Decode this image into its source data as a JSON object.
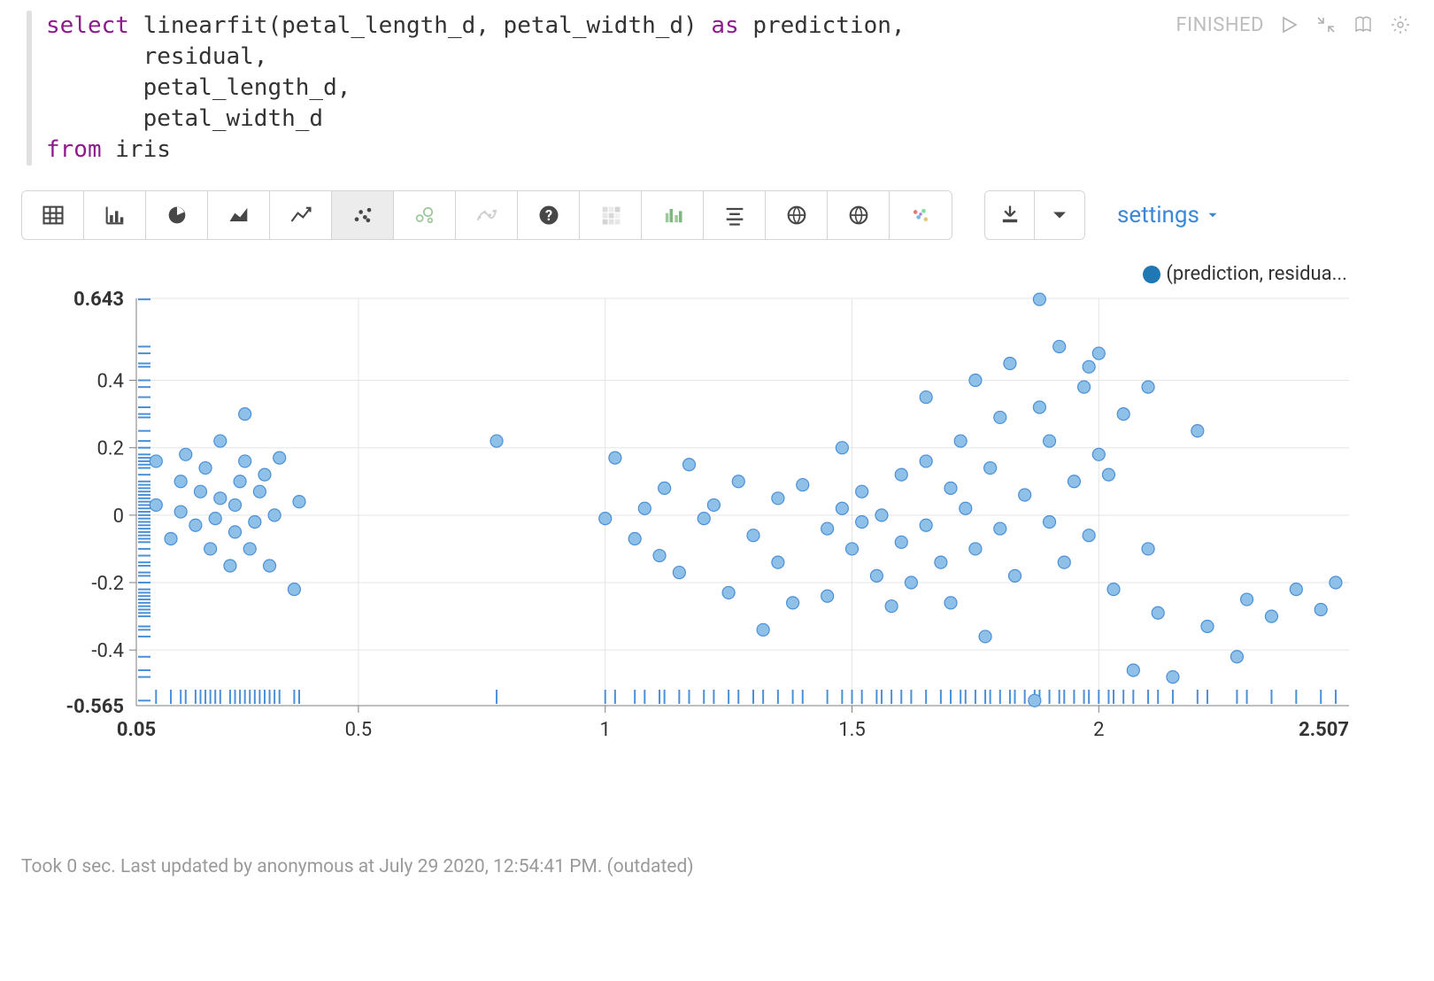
{
  "code": {
    "tokens": [
      {
        "kw": "select"
      },
      {
        "t": " linearfit(petal_length_d, petal_width_d) "
      },
      {
        "kw": "as"
      },
      {
        "t": " prediction,\n"
      },
      {
        "t": "       residual,\n"
      },
      {
        "t": "       petal_length_d,\n"
      },
      {
        "t": "       petal_width_d\n"
      },
      {
        "kw": "from"
      },
      {
        "t": " iris"
      }
    ]
  },
  "status": "FINISHED",
  "control_icons": [
    "play",
    "collapse",
    "book",
    "gear"
  ],
  "toolbar": {
    "buttons": [
      {
        "name": "table-view",
        "icon": "table",
        "active": false
      },
      {
        "name": "bar-chart",
        "icon": "bar",
        "active": false
      },
      {
        "name": "pie-chart",
        "icon": "pie",
        "active": false
      },
      {
        "name": "area-chart",
        "icon": "area",
        "active": false
      },
      {
        "name": "line-chart",
        "icon": "line",
        "active": false
      },
      {
        "name": "scatter-chart",
        "icon": "scatter",
        "active": true
      },
      {
        "name": "bubble-chart",
        "icon": "bubble",
        "muted": true
      },
      {
        "name": "trendline",
        "icon": "trend",
        "muted2": true
      },
      {
        "name": "help",
        "icon": "help"
      },
      {
        "name": "heatmap",
        "icon": "heatmap",
        "muted2": true
      },
      {
        "name": "grouped-bar",
        "icon": "gbar",
        "muted": true
      },
      {
        "name": "text-align",
        "icon": "align"
      },
      {
        "name": "globe-1",
        "icon": "globe"
      },
      {
        "name": "globe-2",
        "icon": "globe"
      },
      {
        "name": "cluster",
        "icon": "cluster"
      }
    ],
    "download_icons": [
      "download",
      "chevron-down"
    ],
    "settings_label": "settings"
  },
  "chart": {
    "type": "scatter",
    "legend_label": "(prediction, residua...",
    "point_fill": "#8fc1e8",
    "point_stroke": "#4a90d9",
    "point_radius": 7,
    "grid_color": "#e5e5e5",
    "axis_color": "#7f7f7f",
    "rug_color": "#4a90d9",
    "background_color": "#ffffff",
    "xlim": [
      0.05,
      2.507
    ],
    "ylim": [
      -0.565,
      0.643
    ],
    "xticks_major": [
      0.5,
      1,
      1.5,
      2
    ],
    "yticks_major": [
      -0.4,
      -0.2,
      0,
      0.2,
      0.4
    ],
    "x_min_label": "0.05",
    "x_max_label": "2.507",
    "y_min_label": "-0.565",
    "y_max_label": "0.643",
    "points": [
      [
        0.09,
        0.03
      ],
      [
        0.09,
        0.16
      ],
      [
        0.12,
        -0.07
      ],
      [
        0.14,
        0.01
      ],
      [
        0.14,
        0.1
      ],
      [
        0.15,
        0.18
      ],
      [
        0.17,
        -0.03
      ],
      [
        0.18,
        0.07
      ],
      [
        0.19,
        0.14
      ],
      [
        0.2,
        -0.1
      ],
      [
        0.21,
        -0.01
      ],
      [
        0.22,
        0.05
      ],
      [
        0.22,
        0.22
      ],
      [
        0.24,
        -0.15
      ],
      [
        0.25,
        -0.05
      ],
      [
        0.25,
        0.03
      ],
      [
        0.26,
        0.1
      ],
      [
        0.27,
        0.16
      ],
      [
        0.27,
        0.3
      ],
      [
        0.28,
        -0.1
      ],
      [
        0.29,
        -0.02
      ],
      [
        0.3,
        0.07
      ],
      [
        0.31,
        0.12
      ],
      [
        0.32,
        -0.15
      ],
      [
        0.33,
        0.0
      ],
      [
        0.34,
        0.17
      ],
      [
        0.37,
        -0.22
      ],
      [
        0.38,
        0.04
      ],
      [
        0.78,
        0.22
      ],
      [
        1.0,
        -0.01
      ],
      [
        1.02,
        0.17
      ],
      [
        1.06,
        -0.07
      ],
      [
        1.08,
        0.02
      ],
      [
        1.12,
        0.08
      ],
      [
        1.11,
        -0.12
      ],
      [
        1.15,
        -0.17
      ],
      [
        1.17,
        0.15
      ],
      [
        1.2,
        -0.01
      ],
      [
        1.22,
        0.03
      ],
      [
        1.25,
        -0.23
      ],
      [
        1.27,
        0.1
      ],
      [
        1.3,
        -0.06
      ],
      [
        1.32,
        -0.34
      ],
      [
        1.35,
        0.05
      ],
      [
        1.35,
        -0.14
      ],
      [
        1.38,
        -0.26
      ],
      [
        1.4,
        0.09
      ],
      [
        1.45,
        -0.04
      ],
      [
        1.45,
        -0.24
      ],
      [
        1.48,
        0.02
      ],
      [
        1.48,
        0.2
      ],
      [
        1.5,
        -0.1
      ],
      [
        1.52,
        -0.02
      ],
      [
        1.52,
        0.07
      ],
      [
        1.55,
        -0.18
      ],
      [
        1.56,
        0.0
      ],
      [
        1.58,
        -0.27
      ],
      [
        1.6,
        0.12
      ],
      [
        1.6,
        -0.08
      ],
      [
        1.62,
        -0.2
      ],
      [
        1.65,
        0.16
      ],
      [
        1.65,
        -0.03
      ],
      [
        1.65,
        0.35
      ],
      [
        1.68,
        -0.14
      ],
      [
        1.7,
        0.08
      ],
      [
        1.7,
        -0.26
      ],
      [
        1.72,
        0.22
      ],
      [
        1.73,
        0.02
      ],
      [
        1.75,
        -0.1
      ],
      [
        1.75,
        0.4
      ],
      [
        1.77,
        -0.36
      ],
      [
        1.78,
        0.14
      ],
      [
        1.8,
        -0.04
      ],
      [
        1.8,
        0.29
      ],
      [
        1.82,
        0.45
      ],
      [
        1.83,
        -0.18
      ],
      [
        1.85,
        0.06
      ],
      [
        1.87,
        -0.55
      ],
      [
        1.88,
        0.32
      ],
      [
        1.88,
        0.64
      ],
      [
        1.9,
        -0.02
      ],
      [
        1.9,
        0.22
      ],
      [
        1.92,
        0.5
      ],
      [
        1.93,
        -0.14
      ],
      [
        1.95,
        0.1
      ],
      [
        1.97,
        0.38
      ],
      [
        1.98,
        -0.06
      ],
      [
        1.98,
        0.44
      ],
      [
        2.0,
        0.18
      ],
      [
        2.0,
        0.48
      ],
      [
        2.02,
        0.12
      ],
      [
        2.03,
        -0.22
      ],
      [
        2.05,
        0.3
      ],
      [
        2.07,
        -0.46
      ],
      [
        2.1,
        -0.1
      ],
      [
        2.1,
        0.38
      ],
      [
        2.12,
        -0.29
      ],
      [
        2.15,
        -0.48
      ],
      [
        2.2,
        0.25
      ],
      [
        2.22,
        -0.33
      ],
      [
        2.28,
        -0.42
      ],
      [
        2.3,
        -0.25
      ],
      [
        2.35,
        -0.3
      ],
      [
        2.4,
        -0.22
      ],
      [
        2.45,
        -0.28
      ],
      [
        2.48,
        -0.2
      ]
    ]
  },
  "footer_text": "Took 0 sec. Last updated by anonymous at July 29 2020, 12:54:41 PM. (outdated)"
}
